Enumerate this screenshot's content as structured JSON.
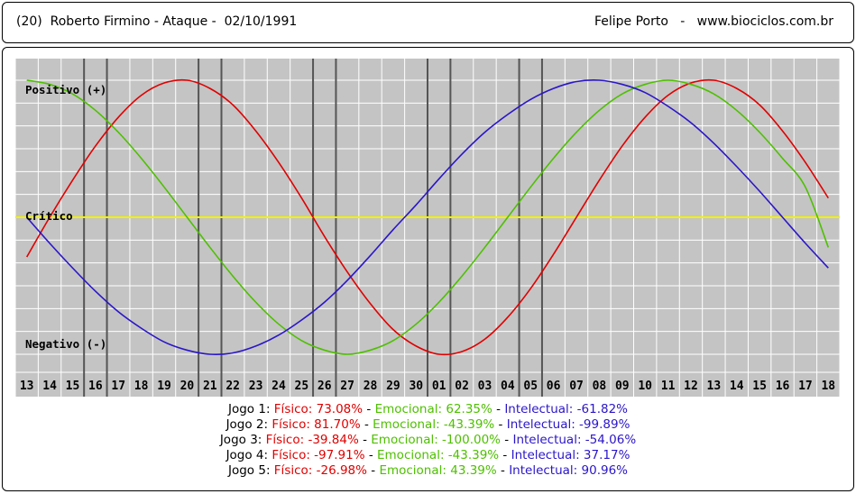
{
  "header": {
    "left": "(20)  Roberto Firmino - Ataque -  02/10/1991",
    "right": "Felipe Porto   -   www.biociclos.com.br"
  },
  "chart_data": {
    "type": "line",
    "x_ticks": [
      "13",
      "14",
      "15",
      "16",
      "17",
      "18",
      "19",
      "20",
      "21",
      "22",
      "23",
      "24",
      "25",
      "26",
      "27",
      "28",
      "29",
      "30",
      "01",
      "02",
      "03",
      "04",
      "05",
      "06",
      "07",
      "08",
      "09",
      "10",
      "11",
      "12",
      "13",
      "14",
      "15",
      "16",
      "17",
      "18"
    ],
    "zone_labels": {
      "positive": "Positivo (+)",
      "critical": "Crítico",
      "negative": "Negativo (-)"
    },
    "ylim": [
      -100,
      100
    ],
    "grid": true,
    "game_markers": [
      [
        "16",
        "17"
      ],
      [
        "21",
        "22"
      ],
      [
        "26",
        "27"
      ],
      [
        "01",
        "02"
      ],
      [
        "05",
        "06"
      ]
    ],
    "series": [
      {
        "name": "Físico",
        "color": "#e00000",
        "period": 23,
        "y": [
          -29.0,
          0.0,
          27.0,
          52.0,
          73.0,
          89.0,
          98.0,
          100.0,
          94.0,
          82.0,
          63.0,
          40.0,
          14.0,
          -14.0,
          -40.0,
          -63.0,
          -82.0,
          -94.0,
          -100.0,
          -98.0,
          -89.0,
          -73.0,
          -52.0,
          -27.0,
          0.0,
          27.0,
          52.0,
          73.0,
          89.0,
          98.0,
          100.0,
          94.0,
          82.0,
          63.0,
          40.0,
          14.0
        ]
      },
      {
        "name": "Emocional",
        "color": "#4ec000",
        "period": 28,
        "y": [
          100.0,
          97.0,
          90.0,
          78.0,
          62.0,
          43.0,
          22.0,
          0.0,
          -22.0,
          -43.0,
          -62.0,
          -78.0,
          -90.0,
          -97.0,
          -100.0,
          -97.0,
          -90.0,
          -78.0,
          -62.0,
          -43.0,
          -22.0,
          0.0,
          22.0,
          43.0,
          62.0,
          78.0,
          90.0,
          97.0,
          100.0,
          97.0,
          90.0,
          78.0,
          62.0,
          43.0,
          22.0,
          -22.0
        ]
      },
      {
        "name": "Intelectual",
        "color": "#2a16c8",
        "period": 33,
        "y": [
          0.0,
          -19.0,
          -37.0,
          -54.0,
          -69.0,
          -81.0,
          -91.0,
          -97.0,
          -100.0,
          -99.0,
          -94.0,
          -86.0,
          -75.0,
          -62.0,
          -46.0,
          -28.0,
          -9.0,
          9.0,
          28.0,
          46.0,
          62.0,
          75.0,
          86.0,
          94.0,
          99.0,
          100.0,
          97.0,
          91.0,
          81.0,
          69.0,
          54.0,
          37.0,
          19.0,
          0.0,
          -19.0,
          -37.0
        ]
      }
    ]
  },
  "games": [
    {
      "label": "Jogo 1:",
      "fisico": "Físico: 73.08%",
      "emocional": "Emocional: 62.35%",
      "intelectual": "Intelectual: -61.82%"
    },
    {
      "label": "Jogo 2:",
      "fisico": "Físico: 81.70%",
      "emocional": "Emocional: -43.39%",
      "intelectual": "Intelectual: -99.89%"
    },
    {
      "label": "Jogo 3:",
      "fisico": "Físico: -39.84%",
      "emocional": "Emocional: -100.00%",
      "intelectual": "Intelectual: -54.06%"
    },
    {
      "label": "Jogo 4:",
      "fisico": "Físico: -97.91%",
      "emocional": "Emocional: -43.39%",
      "intelectual": "Intelectual: 37.17%"
    },
    {
      "label": "Jogo 5:",
      "fisico": "Físico: -26.98%",
      "emocional": "Emocional: 43.39%",
      "intelectual": "Intelectual: 90.96%"
    }
  ]
}
